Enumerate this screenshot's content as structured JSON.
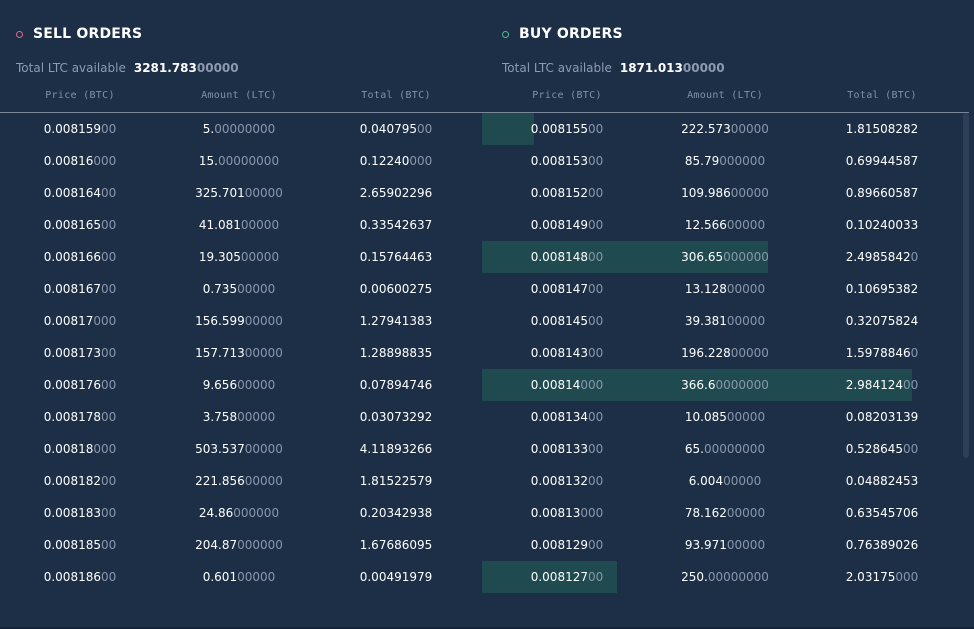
{
  "sell": {
    "title": "SELL ORDERS",
    "available_label": "Total LTC available",
    "available_digits": "3281.783",
    "available_pad": "00000",
    "columns": [
      "Price (BTC)",
      "Amount (LTC)",
      "Total (BTC)"
    ],
    "rows": [
      [
        [
          "0.008159",
          "00"
        ],
        [
          "5.",
          "00000000"
        ],
        [
          "0.040795",
          "00"
        ]
      ],
      [
        [
          "0.00816",
          "000"
        ],
        [
          "15.",
          "00000000"
        ],
        [
          "0.12240",
          "000"
        ]
      ],
      [
        [
          "0.008164",
          "00"
        ],
        [
          "325.701",
          "00000"
        ],
        [
          "2.65902296",
          ""
        ]
      ],
      [
        [
          "0.008165",
          "00"
        ],
        [
          "41.081",
          "00000"
        ],
        [
          "0.33542637",
          ""
        ]
      ],
      [
        [
          "0.008166",
          "00"
        ],
        [
          "19.305",
          "00000"
        ],
        [
          "0.15764463",
          ""
        ]
      ],
      [
        [
          "0.008167",
          "00"
        ],
        [
          "0.735",
          "00000"
        ],
        [
          "0.00600275",
          ""
        ]
      ],
      [
        [
          "0.00817",
          "000"
        ],
        [
          "156.599",
          "00000"
        ],
        [
          "1.27941383",
          ""
        ]
      ],
      [
        [
          "0.008173",
          "00"
        ],
        [
          "157.713",
          "00000"
        ],
        [
          "1.28898835",
          ""
        ]
      ],
      [
        [
          "0.008176",
          "00"
        ],
        [
          "9.656",
          "00000"
        ],
        [
          "0.07894746",
          ""
        ]
      ],
      [
        [
          "0.008178",
          "00"
        ],
        [
          "3.758",
          "00000"
        ],
        [
          "0.03073292",
          ""
        ]
      ],
      [
        [
          "0.00818",
          "000"
        ],
        [
          "503.537",
          "00000"
        ],
        [
          "4.11893266",
          ""
        ]
      ],
      [
        [
          "0.008182",
          "00"
        ],
        [
          "221.856",
          "00000"
        ],
        [
          "1.81522579",
          ""
        ]
      ],
      [
        [
          "0.008183",
          "00"
        ],
        [
          "24.86",
          "000000"
        ],
        [
          "0.20342938",
          ""
        ]
      ],
      [
        [
          "0.008185",
          "00"
        ],
        [
          "204.87",
          "000000"
        ],
        [
          "1.67686095",
          ""
        ]
      ],
      [
        [
          "0.008186",
          "00"
        ],
        [
          "0.601",
          "00000"
        ],
        [
          "0.00491979",
          ""
        ]
      ]
    ]
  },
  "buy": {
    "title": "BUY ORDERS",
    "available_label": "Total LTC available",
    "available_digits": "1871.013",
    "available_pad": "00000",
    "columns": [
      "Price (BTC)",
      "Amount (LTC)",
      "Total (BTC)"
    ],
    "rows": [
      [
        [
          "0.008155",
          "00"
        ],
        [
          "222.573",
          "00000"
        ],
        [
          "1.81508282",
          ""
        ]
      ],
      [
        [
          "0.008153",
          "00"
        ],
        [
          "85.79",
          "000000"
        ],
        [
          "0.69944587",
          ""
        ]
      ],
      [
        [
          "0.008152",
          "00"
        ],
        [
          "109.986",
          "00000"
        ],
        [
          "0.89660587",
          ""
        ]
      ],
      [
        [
          "0.008149",
          "00"
        ],
        [
          "12.566",
          "00000"
        ],
        [
          "0.10240033",
          ""
        ]
      ],
      [
        [
          "0.008148",
          "00"
        ],
        [
          "306.65",
          "000000"
        ],
        [
          "2.4985842",
          "0"
        ]
      ],
      [
        [
          "0.008147",
          "00"
        ],
        [
          "13.128",
          "00000"
        ],
        [
          "0.10695382",
          ""
        ]
      ],
      [
        [
          "0.008145",
          "00"
        ],
        [
          "39.381",
          "00000"
        ],
        [
          "0.32075824",
          ""
        ]
      ],
      [
        [
          "0.008143",
          "00"
        ],
        [
          "196.228",
          "00000"
        ],
        [
          "1.5978846",
          "0"
        ]
      ],
      [
        [
          "0.00814",
          "000"
        ],
        [
          "366.6",
          "0000000"
        ],
        [
          "2.984124",
          "00"
        ]
      ],
      [
        [
          "0.008134",
          "00"
        ],
        [
          "10.085",
          "00000"
        ],
        [
          "0.08203139",
          ""
        ]
      ],
      [
        [
          "0.008133",
          "00"
        ],
        [
          "65.",
          "00000000"
        ],
        [
          "0.528645",
          "00"
        ]
      ],
      [
        [
          "0.008132",
          "00"
        ],
        [
          "6.004",
          "00000"
        ],
        [
          "0.04882453",
          ""
        ]
      ],
      [
        [
          "0.00813",
          "000"
        ],
        [
          "78.162",
          "00000"
        ],
        [
          "0.63545706",
          ""
        ]
      ],
      [
        [
          "0.008129",
          "00"
        ],
        [
          "93.971",
          "00000"
        ],
        [
          "0.76389026",
          ""
        ]
      ],
      [
        [
          "0.008127",
          "00"
        ],
        [
          "250.",
          "00000000"
        ],
        [
          "2.03175",
          "000"
        ]
      ]
    ],
    "depth_fraction": [
      0.12,
      0,
      0,
      0,
      0.66,
      0,
      0,
      0,
      0.99,
      0,
      0,
      0,
      0,
      0,
      0.31
    ]
  },
  "colors": {
    "background": "#1d2e47",
    "depth_bar": "#1f4a50",
    "sell_accent": "#e0678a",
    "buy_accent": "#4cc07f"
  }
}
